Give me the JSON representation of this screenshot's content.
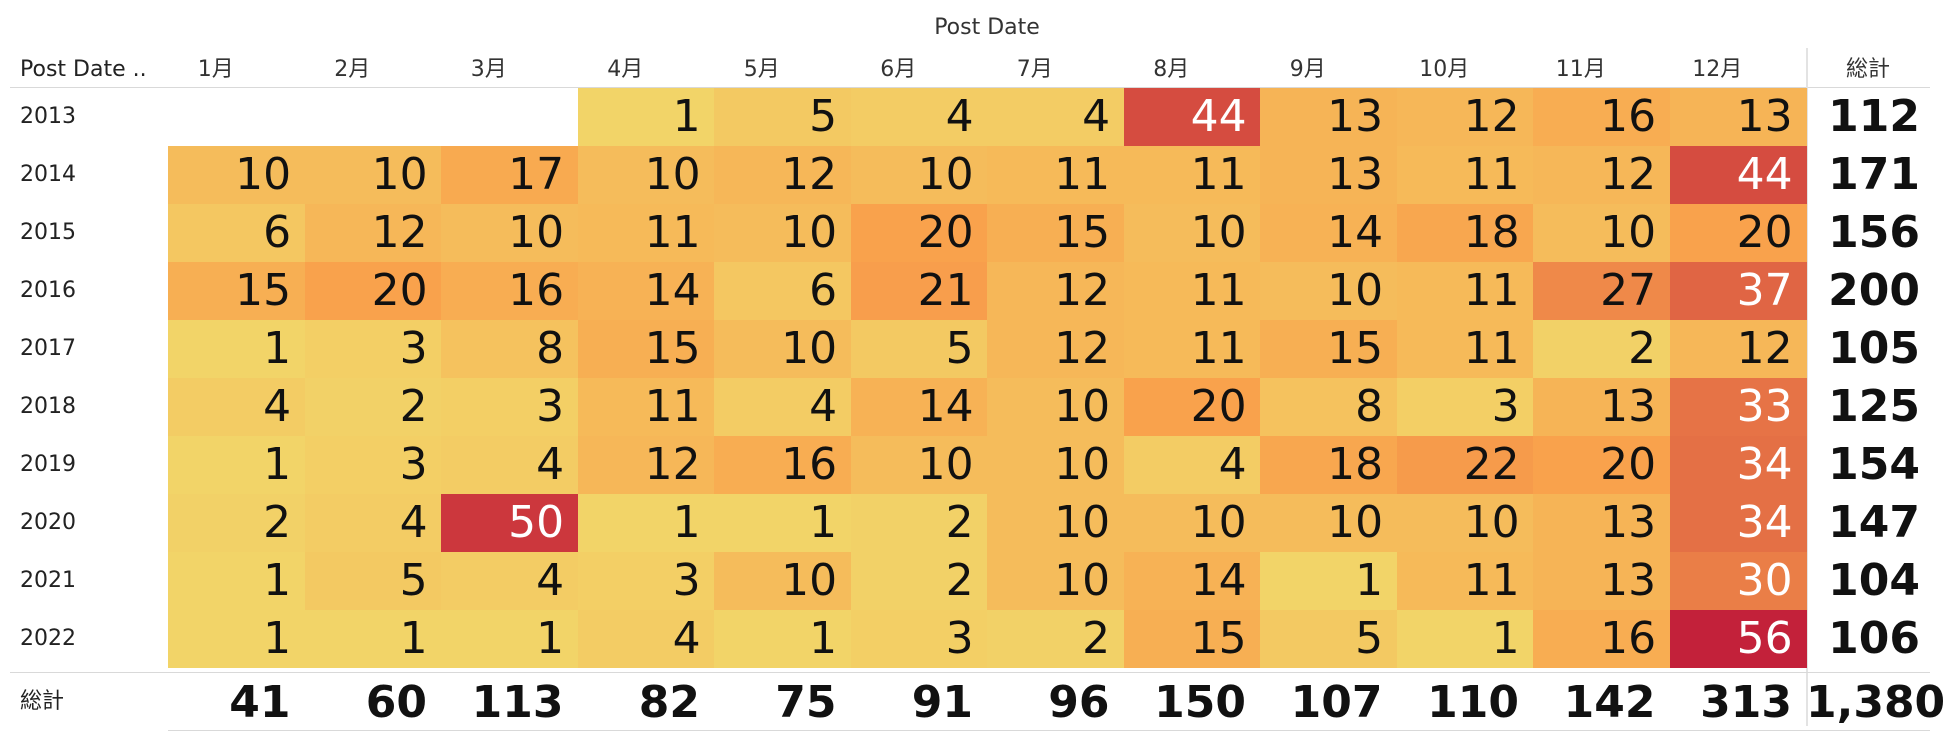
{
  "chart_data": {
    "type": "heatmap",
    "title": "Post Date",
    "row_header": "Post Date ..",
    "total_label": "総計",
    "columns": [
      "1月",
      "2月",
      "3月",
      "4月",
      "5月",
      "6月",
      "7月",
      "8月",
      "9月",
      "10月",
      "11月",
      "12月"
    ],
    "rows": [
      "2013",
      "2014",
      "2015",
      "2016",
      "2017",
      "2018",
      "2019",
      "2020",
      "2021",
      "2022"
    ],
    "values": [
      [
        null,
        null,
        null,
        1,
        5,
        4,
        4,
        44,
        13,
        12,
        16,
        13
      ],
      [
        10,
        10,
        17,
        10,
        12,
        10,
        11,
        11,
        13,
        11,
        12,
        44
      ],
      [
        6,
        12,
        10,
        11,
        10,
        20,
        15,
        10,
        14,
        18,
        10,
        20
      ],
      [
        15,
        20,
        16,
        14,
        6,
        21,
        12,
        11,
        10,
        11,
        27,
        37
      ],
      [
        1,
        3,
        8,
        15,
        10,
        5,
        12,
        11,
        15,
        11,
        2,
        12
      ],
      [
        4,
        2,
        3,
        11,
        4,
        14,
        10,
        20,
        8,
        3,
        13,
        33
      ],
      [
        1,
        3,
        4,
        12,
        16,
        10,
        10,
        4,
        18,
        22,
        20,
        34
      ],
      [
        2,
        4,
        50,
        1,
        1,
        2,
        10,
        10,
        10,
        10,
        13,
        34
      ],
      [
        1,
        5,
        4,
        3,
        10,
        2,
        10,
        14,
        1,
        11,
        13,
        30
      ],
      [
        1,
        1,
        1,
        4,
        1,
        3,
        2,
        15,
        5,
        1,
        16,
        56
      ]
    ],
    "row_totals": [
      "112",
      "171",
      "156",
      "200",
      "105",
      "125",
      "154",
      "147",
      "104",
      "106"
    ],
    "column_totals": [
      "41",
      "60",
      "113",
      "82",
      "75",
      "91",
      "96",
      "150",
      "107",
      "110",
      "142",
      "313"
    ],
    "grand_total": "1,380",
    "color_scale": [
      "#f2d468",
      "#f9a24c",
      "#c3213a"
    ]
  }
}
